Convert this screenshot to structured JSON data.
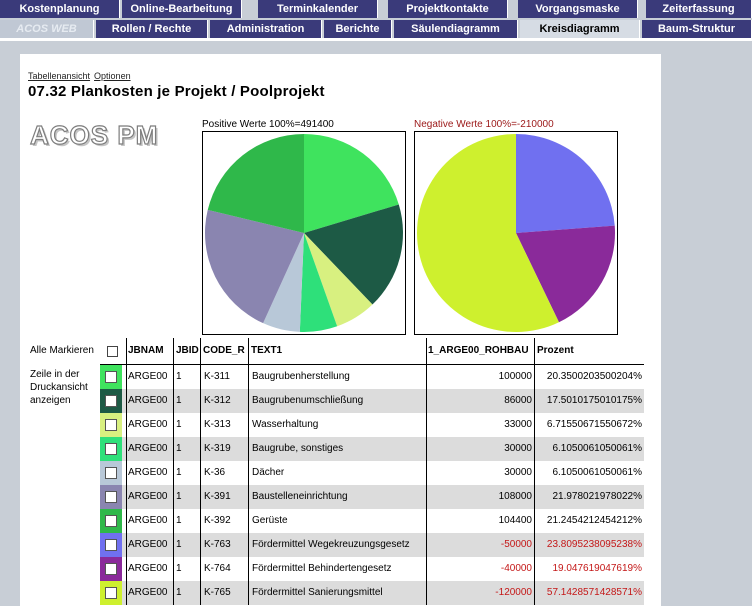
{
  "nav": {
    "row1": [
      "Kostenplanung",
      "Online-Bearbeitung",
      "Terminkalender",
      "Projektkontakte",
      "Vorgangsmaske",
      "Zeiterfassung"
    ],
    "row2": [
      "ACOS WEB",
      "Rollen / Rechte",
      "Administration",
      "Berichte",
      "Säulendiagramm",
      "Kreisdiagramm",
      "Baum-Struktur"
    ],
    "active": "Kreisdiagramm"
  },
  "page": {
    "links": [
      "Tabellenansicht",
      "Optionen"
    ],
    "title": "07.32 Plankosten je Projekt / Poolprojekt",
    "logo": "ACOS PM"
  },
  "chart_data": [
    {
      "type": "pie",
      "title": "Positive Werte 100%=491400",
      "categories": [
        "K-311",
        "K-312",
        "K-313",
        "K-319",
        "K-36",
        "K-391",
        "K-392"
      ],
      "values": [
        100000,
        86000,
        33000,
        30000,
        30000,
        108000,
        104400
      ],
      "colors": [
        "#3fe35e",
        "#1d5a45",
        "#d8f080",
        "#2ee07a",
        "#b8c8d8",
        "#8a85b0",
        "#2fb84a"
      ]
    },
    {
      "type": "pie",
      "title": "Negative Werte 100%=-210000",
      "categories": [
        "K-763",
        "K-764",
        "K-765"
      ],
      "values": [
        -50000,
        -40000,
        -120000
      ],
      "colors": [
        "#7070f0",
        "#8a2a9a",
        "#cef02e"
      ]
    }
  ],
  "table": {
    "select_all_label": "Alle Markieren",
    "side_note": "Zeile in der Druckansicht anzeigen",
    "columns": [
      "JBNAM",
      "JBID",
      "CODE_R",
      "TEXT1",
      "1_ARGE00_ROHBAU",
      "Prozent"
    ],
    "rows": [
      {
        "color": "#3fe35e",
        "jbnam": "ARGE00",
        "jbid": "1",
        "code": "K-311",
        "text": "Baugrubenherstellung",
        "value": "100000",
        "pct": "20.3500203500204%",
        "negative": false
      },
      {
        "color": "#1d5a45",
        "jbnam": "ARGE00",
        "jbid": "1",
        "code": "K-312",
        "text": "Baugrubenumschließung",
        "value": "86000",
        "pct": "17.5010175010175%",
        "negative": false
      },
      {
        "color": "#d8f080",
        "jbnam": "ARGE00",
        "jbid": "1",
        "code": "K-313",
        "text": "Wasserhaltung",
        "value": "33000",
        "pct": "6.71550671550672%",
        "negative": false
      },
      {
        "color": "#2ee07a",
        "jbnam": "ARGE00",
        "jbid": "1",
        "code": "K-319",
        "text": "Baugrube, sonstiges",
        "value": "30000",
        "pct": "6.1050061050061%",
        "negative": false
      },
      {
        "color": "#b8c8d8",
        "jbnam": "ARGE00",
        "jbid": "1",
        "code": "K-36",
        "text": "Dächer",
        "value": "30000",
        "pct": "6.1050061050061%",
        "negative": false
      },
      {
        "color": "#8a85b0",
        "jbnam": "ARGE00",
        "jbid": "1",
        "code": "K-391",
        "text": "Baustelleneinrichtung",
        "value": "108000",
        "pct": "21.978021978022%",
        "negative": false
      },
      {
        "color": "#2fb84a",
        "jbnam": "ARGE00",
        "jbid": "1",
        "code": "K-392",
        "text": "Gerüste",
        "value": "104400",
        "pct": "21.2454212454212%",
        "negative": false
      },
      {
        "color": "#7070f0",
        "jbnam": "ARGE00",
        "jbid": "1",
        "code": "K-763",
        "text": "Fördermittel Wegekreuzungsgesetz",
        "value": "-50000",
        "pct": "23.8095238095238%",
        "negative": true
      },
      {
        "color": "#8a2a9a",
        "jbnam": "ARGE00",
        "jbid": "1",
        "code": "K-764",
        "text": "Fördermittel Behindertengesetz",
        "value": "-40000",
        "pct": "19.047619047619%",
        "negative": true
      },
      {
        "color": "#cef02e",
        "jbnam": "ARGE00",
        "jbid": "1",
        "code": "K-765",
        "text": "Fördermittel Sanierungsmittel",
        "value": "-120000",
        "pct": "57.1428571428571%",
        "negative": true
      }
    ]
  }
}
